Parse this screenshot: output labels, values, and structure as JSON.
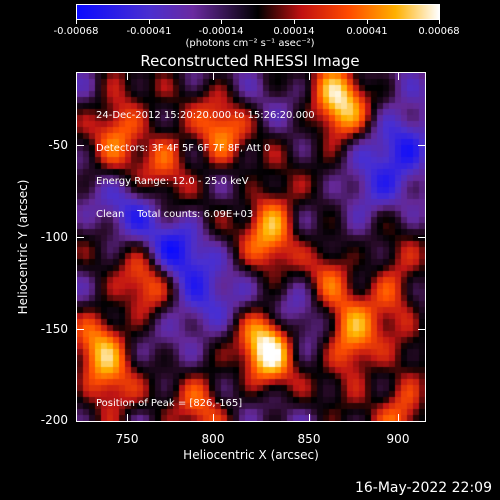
{
  "colorbar": {
    "tick_labels": [
      "-0.00068",
      "-0.00041",
      "-0.00014",
      "0.00014",
      "0.00041",
      "0.00068"
    ],
    "unit_label": "(photons cm⁻² s⁻¹ asec⁻²)",
    "range": [
      -0.00068,
      0.00068
    ]
  },
  "chart_data": {
    "type": "heatmap",
    "title": "Reconstructed RHESSI Image",
    "xlabel": "Heliocentric X (arcsec)",
    "ylabel": "Heliocentric Y (arcsec)",
    "xlim": [
      722,
      912
    ],
    "ylim": [
      -202,
      -12
    ],
    "x_ticks": [
      "750",
      "800",
      "850",
      "900"
    ],
    "y_ticks": [
      "-50",
      "-100",
      "-150",
      "-200"
    ],
    "annotation_lines": [
      "24-Dec-2012 15:20:20.000 to 15:26:20.000",
      "Detectors: 3F 4F 5F 6F 7F 8F, Att 0",
      "Energy Range: 12.0 - 25.0 keV",
      "Clean    Total counts: 6.09E+03"
    ],
    "peak_label": "Position of Peak = [826,-165]",
    "peak": [
      826,
      -165
    ],
    "hotspots": [
      {
        "x": 826,
        "y": -160,
        "amp": 1.0
      },
      {
        "x": 828,
        "y": -95,
        "amp": 0.75
      },
      {
        "x": 865,
        "y": -30,
        "amp": 0.85
      },
      {
        "x": 745,
        "y": -40,
        "amp": 0.6
      },
      {
        "x": 770,
        "y": -60,
        "amp": 0.5
      },
      {
        "x": 800,
        "y": -45,
        "amp": 0.55
      },
      {
        "x": 760,
        "y": -125,
        "amp": 0.55
      },
      {
        "x": 735,
        "y": -160,
        "amp": 0.6
      },
      {
        "x": 872,
        "y": -160,
        "amp": 0.7
      },
      {
        "x": 860,
        "y": -120,
        "amp": 0.45
      },
      {
        "x": 895,
        "y": -130,
        "amp": 0.5
      },
      {
        "x": 900,
        "y": -195,
        "amp": 0.55
      },
      {
        "x": 790,
        "y": -190,
        "amp": 0.45
      },
      {
        "x": 740,
        "y": -190,
        "amp": 0.4
      }
    ],
    "coldspots": [
      {
        "x": 775,
        "y": -110,
        "amp": 0.55
      },
      {
        "x": 900,
        "y": -50,
        "amp": 0.6
      },
      {
        "x": 790,
        "y": -140,
        "amp": 0.45
      },
      {
        "x": 840,
        "y": -140,
        "amp": 0.35
      },
      {
        "x": 880,
        "y": -80,
        "amp": 0.35
      },
      {
        "x": 755,
        "y": -85,
        "amp": 0.35
      }
    ]
  },
  "timestamp": "16-May-2022 22:09"
}
